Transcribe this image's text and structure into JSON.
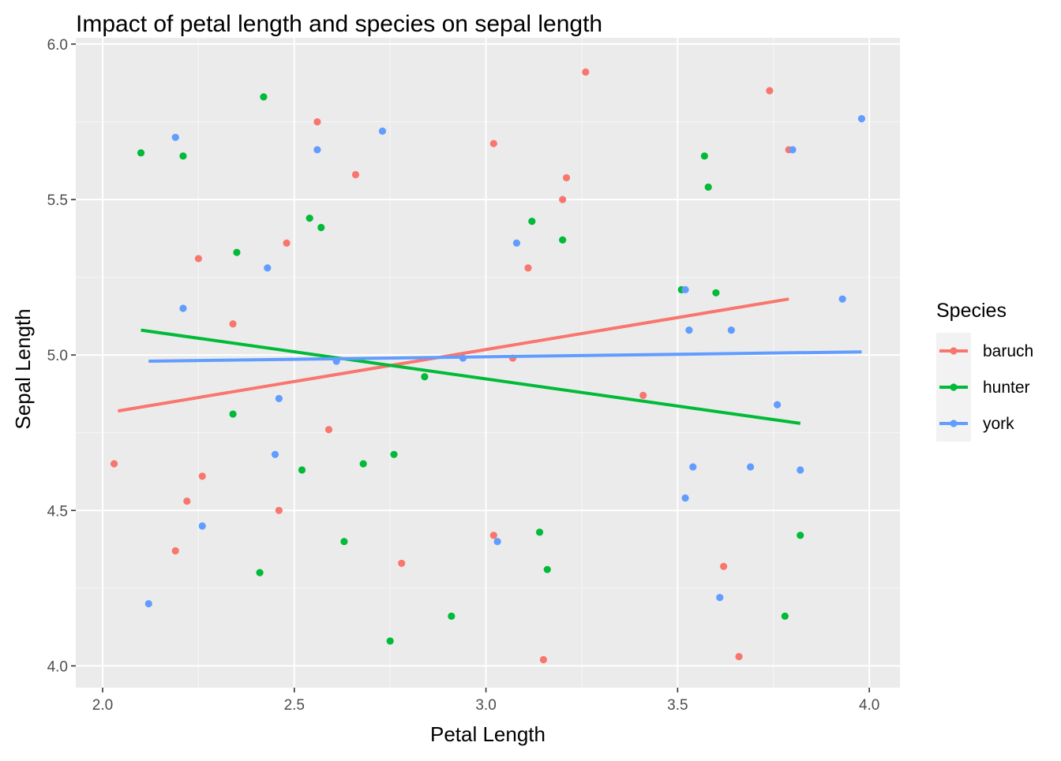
{
  "chart_data": {
    "type": "scatter",
    "title": "Impact of petal length and species on sepal length",
    "xlabel": "Petal Length",
    "ylabel": "Sepal Length",
    "xlim": [
      1.93,
      4.08
    ],
    "ylim": [
      3.93,
      6.02
    ],
    "x_ticks": [
      2.0,
      2.5,
      3.0,
      3.5,
      4.0
    ],
    "x_tick_labels": [
      "2.0",
      "2.5",
      "3.0",
      "3.5",
      "4.0"
    ],
    "y_ticks": [
      4.0,
      4.5,
      5.0,
      5.5,
      6.0
    ],
    "y_tick_labels": [
      "4.0",
      "4.5",
      "5.0",
      "5.5",
      "6.0"
    ],
    "grid": true,
    "legend": {
      "title": "Species",
      "position": "right"
    },
    "series": [
      {
        "name": "baruch",
        "color": "#F8766D",
        "points": [
          [
            2.03,
            4.65
          ],
          [
            2.19,
            4.37
          ],
          [
            2.22,
            4.53
          ],
          [
            2.25,
            5.31
          ],
          [
            2.26,
            4.61
          ],
          [
            2.34,
            5.1
          ],
          [
            2.46,
            4.5
          ],
          [
            2.48,
            5.36
          ],
          [
            2.56,
            5.75
          ],
          [
            2.59,
            4.76
          ],
          [
            2.66,
            5.58
          ],
          [
            2.78,
            4.33
          ],
          [
            3.02,
            4.42
          ],
          [
            3.02,
            5.68
          ],
          [
            3.07,
            4.99
          ],
          [
            3.11,
            5.28
          ],
          [
            3.15,
            4.02
          ],
          [
            3.2,
            5.5
          ],
          [
            3.21,
            5.57
          ],
          [
            3.26,
            5.91
          ],
          [
            3.41,
            4.87
          ],
          [
            3.62,
            4.32
          ],
          [
            3.66,
            4.03
          ],
          [
            3.74,
            5.85
          ],
          [
            3.79,
            5.66
          ]
        ],
        "trend": {
          "x": [
            2.04,
            3.79
          ],
          "y": [
            4.82,
            5.18
          ]
        }
      },
      {
        "name": "hunter",
        "color": "#00BA38",
        "points": [
          [
            2.1,
            5.65
          ],
          [
            2.21,
            5.64
          ],
          [
            2.34,
            4.81
          ],
          [
            2.35,
            5.33
          ],
          [
            2.41,
            4.3
          ],
          [
            2.42,
            5.83
          ],
          [
            2.52,
            4.63
          ],
          [
            2.54,
            5.44
          ],
          [
            2.57,
            5.41
          ],
          [
            2.63,
            4.4
          ],
          [
            2.68,
            4.65
          ],
          [
            2.75,
            4.08
          ],
          [
            2.76,
            4.68
          ],
          [
            2.84,
            4.93
          ],
          [
            2.91,
            4.16
          ],
          [
            3.12,
            5.43
          ],
          [
            3.14,
            4.43
          ],
          [
            3.16,
            4.31
          ],
          [
            3.2,
            5.37
          ],
          [
            3.51,
            5.21
          ],
          [
            3.57,
            5.64
          ],
          [
            3.58,
            5.54
          ],
          [
            3.6,
            5.2
          ],
          [
            3.78,
            4.16
          ],
          [
            3.82,
            4.42
          ]
        ],
        "trend": {
          "x": [
            2.1,
            3.82
          ],
          "y": [
            5.08,
            4.78
          ]
        }
      },
      {
        "name": "york",
        "color": "#619CFF",
        "points": [
          [
            2.12,
            4.2
          ],
          [
            2.19,
            5.7
          ],
          [
            2.21,
            5.15
          ],
          [
            2.26,
            4.45
          ],
          [
            2.43,
            5.28
          ],
          [
            2.45,
            4.68
          ],
          [
            2.46,
            4.86
          ],
          [
            2.56,
            5.66
          ],
          [
            2.61,
            4.98
          ],
          [
            2.73,
            5.72
          ],
          [
            2.94,
            4.99
          ],
          [
            3.03,
            4.4
          ],
          [
            3.08,
            5.36
          ],
          [
            3.52,
            4.54
          ],
          [
            3.52,
            5.21
          ],
          [
            3.53,
            5.08
          ],
          [
            3.54,
            4.64
          ],
          [
            3.61,
            4.22
          ],
          [
            3.64,
            5.08
          ],
          [
            3.69,
            4.64
          ],
          [
            3.76,
            4.84
          ],
          [
            3.8,
            5.66
          ],
          [
            3.82,
            4.63
          ],
          [
            3.93,
            5.18
          ],
          [
            3.98,
            5.76
          ]
        ],
        "trend": {
          "x": [
            2.12,
            3.98
          ],
          "y": [
            4.98,
            5.01
          ]
        }
      }
    ]
  }
}
